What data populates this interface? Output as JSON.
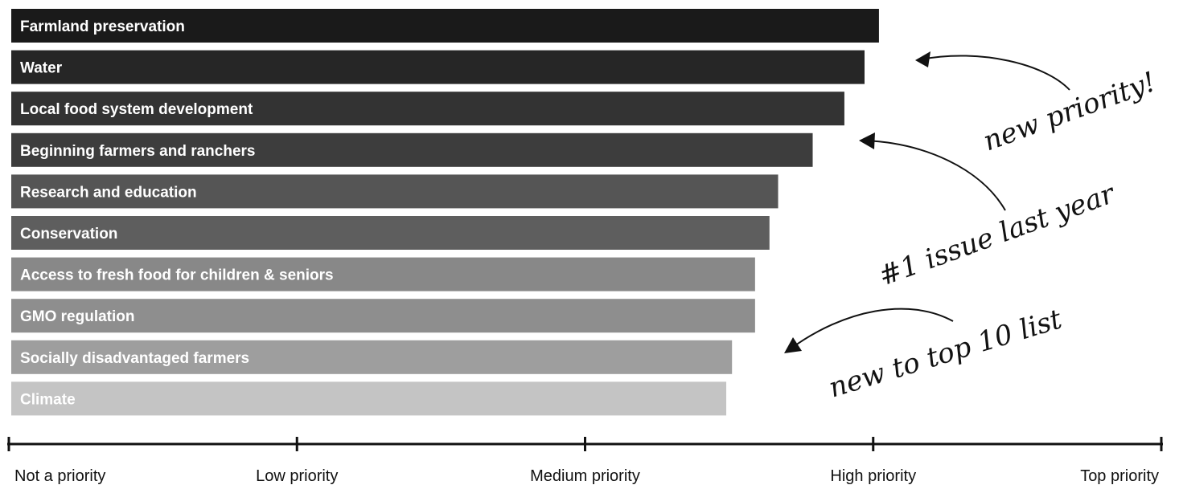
{
  "chart_data": {
    "type": "bar",
    "orientation": "horizontal",
    "title": "",
    "xlabel": "",
    "ylabel": "",
    "xlim": [
      0,
      4
    ],
    "tick_labels": [
      "Not a priority",
      "Low priority",
      "Medium priority",
      "High priority",
      "Top priority"
    ],
    "categories": [
      "Farmland preservation",
      "Water",
      "Local food system development",
      "Beginning farmers and ranchers",
      "Research and education",
      "Conservation",
      "Access to fresh food for children & seniors",
      "GMO regulation",
      "Socially disadvantaged farmers",
      "Climate"
    ],
    "values": [
      3.02,
      2.97,
      2.9,
      2.79,
      2.67,
      2.64,
      2.59,
      2.59,
      2.51,
      2.49
    ],
    "bar_colors": [
      "#1a1a1a",
      "#262626",
      "#333333",
      "#3d3d3d",
      "#555555",
      "#5e5e5e",
      "#888888",
      "#8e8e8e",
      "#9e9e9e",
      "#c4c4c4"
    ],
    "annotations": [
      {
        "text": "new priority!",
        "target": "Water"
      },
      {
        "text": "#1 issue last year",
        "target": "Beginning farmers and ranchers"
      },
      {
        "text": "new to top 10 list",
        "target": "Socially disadvantaged farmers"
      }
    ],
    "grid": false,
    "legend": "none"
  }
}
